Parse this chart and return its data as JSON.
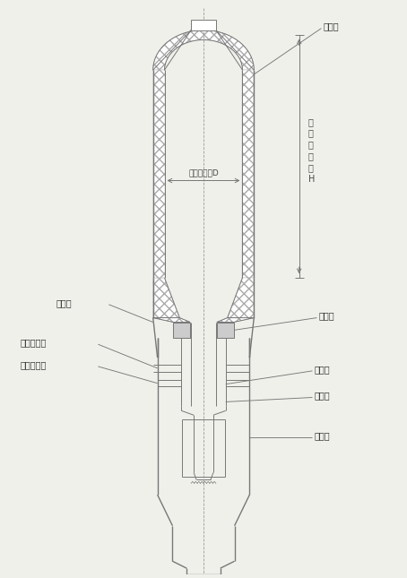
{
  "bg_color": "#f0f0eb",
  "line_color": "#777777",
  "fig_width": 4.54,
  "fig_height": 6.45,
  "labels": {
    "combustion_chamber": "燃烧室",
    "chamber_inner_dia": "燃烧室内径D",
    "chamber_length_H_chars": [
      "燃",
      "烧",
      "室",
      "长",
      "度",
      "H"
    ],
    "quench_ring": "激冷环",
    "support_plate": "支撑板",
    "syngas_outlet": "合成气出口",
    "syngas_baffle": "合成气挡板",
    "downcomer": "下降管",
    "riser": "上升管",
    "quench_chamber": "激冷室"
  }
}
